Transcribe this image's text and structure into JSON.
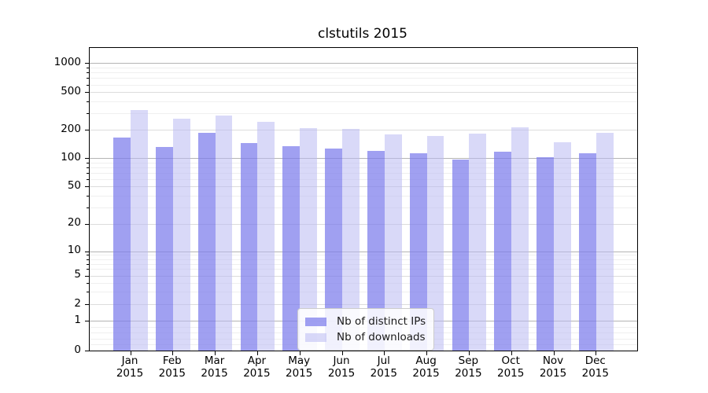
{
  "chart_data": {
    "type": "bar",
    "title": "clstutils 2015",
    "categories": [
      "Jan",
      "Feb",
      "Mar",
      "Apr",
      "May",
      "Jun",
      "Jul",
      "Aug",
      "Sep",
      "Oct",
      "Nov",
      "Dec"
    ],
    "x_tick_year": "2015",
    "series": [
      {
        "name": "Nb of distinct IPs",
        "key": "distinct-ips",
        "fill": "#7c7cec",
        "fill_alpha": 0.72,
        "values": [
          165,
          131,
          186,
          145,
          134,
          126,
          119,
          114,
          97,
          117,
          102,
          113
        ]
      },
      {
        "name": "Nb of downloads",
        "key": "downloads",
        "fill": "#babaf3",
        "fill_alpha": 0.55,
        "values": [
          324,
          262,
          281,
          241,
          207,
          206,
          179,
          172,
          181,
          211,
          148,
          186
        ]
      }
    ],
    "yscale": "symlog",
    "yticks": [
      0,
      1,
      2,
      5,
      10,
      20,
      50,
      100,
      200,
      500,
      1000
    ],
    "ylim": [
      0,
      1400
    ],
    "xlabel": "",
    "ylabel": "",
    "grid": true,
    "legend_position": "lower center"
  },
  "colors": {
    "grid_major": "#b4b4b4",
    "grid_mid": "#dcdcdc",
    "grid_minor": "#efefef",
    "spine": "#000000",
    "text": "#000000",
    "legend_border": "#cccccc"
  }
}
